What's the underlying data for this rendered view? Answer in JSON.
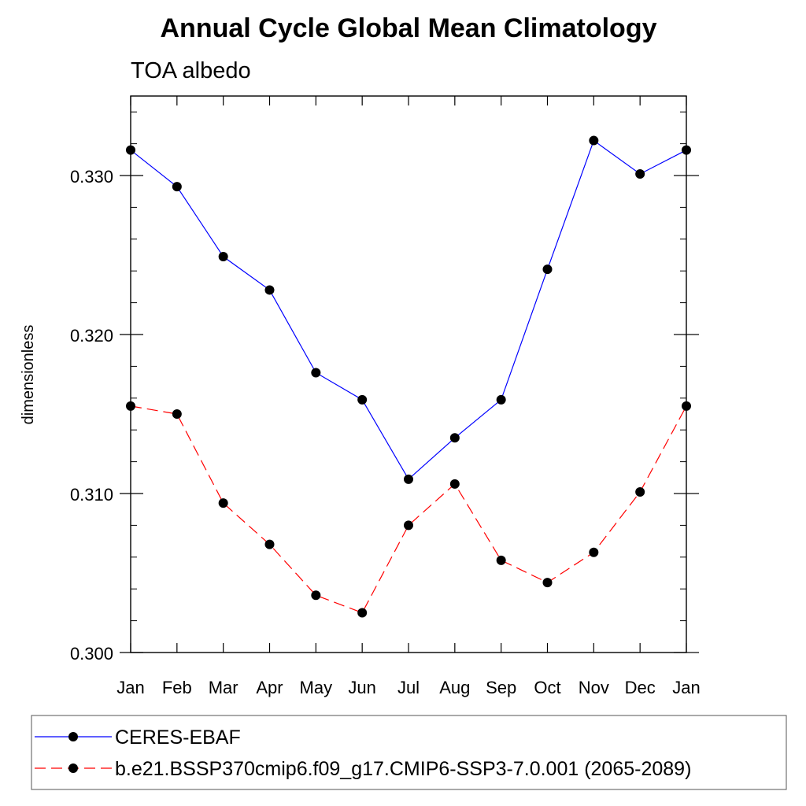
{
  "chart_data": {
    "type": "line",
    "title": "Annual Cycle Global Mean Climatology",
    "subtitle": "TOA albedo",
    "xlabel": "",
    "ylabel": "dimensionless",
    "categories": [
      "Jan",
      "Feb",
      "Mar",
      "Apr",
      "May",
      "Jun",
      "Jul",
      "Aug",
      "Sep",
      "Oct",
      "Nov",
      "Dec",
      "Jan"
    ],
    "ylim": [
      0.3,
      0.335
    ],
    "yticks": [
      "0.300",
      "0.310",
      "0.320",
      "0.330"
    ],
    "ytick_values": [
      0.3,
      0.31,
      0.32,
      0.33
    ],
    "grid": false,
    "legend_position": "bottom",
    "series": [
      {
        "name": "CERES-EBAF",
        "color": "#0000ff",
        "line_style": "solid",
        "values": [
          0.3316,
          0.3293,
          0.3249,
          0.3228,
          0.3176,
          0.3159,
          0.3109,
          0.3135,
          0.3159,
          0.3241,
          0.3322,
          0.3301,
          0.3316
        ]
      },
      {
        "name": "b.e21.BSSP370cmip6.f09_g17.CMIP6-SSP3-7.0.001 (2065-2089)",
        "color": "#ff0000",
        "line_style": "dashed",
        "values": [
          0.3155,
          0.315,
          0.3094,
          0.3068,
          0.3036,
          0.3025,
          0.308,
          0.3106,
          0.3058,
          0.3044,
          0.3063,
          0.3101,
          0.3155
        ]
      }
    ]
  }
}
